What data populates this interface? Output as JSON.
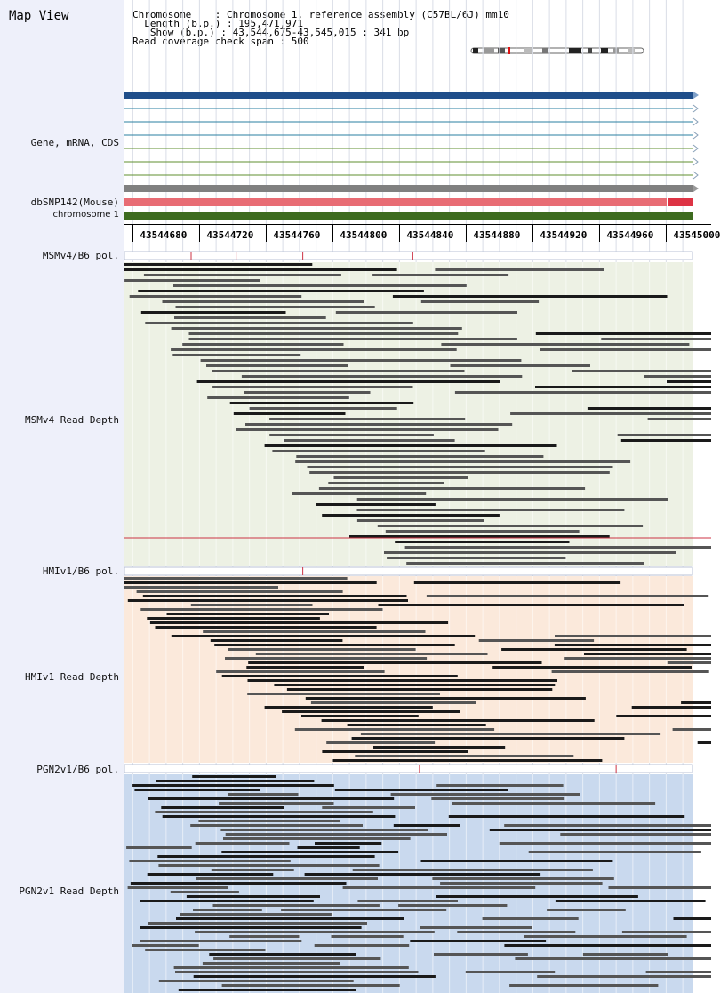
{
  "header": {
    "title": "Map View",
    "chromosome_line": "Chromosome    : Chromosome 1, reference assembly (C57BL/6J) mm10",
    "length_line": "  Length (b.p.) : 195,471,971",
    "show_line": "   Show (b.p.) : 43,544,675-43,545,015 : 341 bp",
    "span_line": "Read coverage check span : 500"
  },
  "labels": {
    "gene": "Gene, mRNA, CDS",
    "dbsnp": "dbSNP142(Mouse)",
    "chromosome": "chromosome 1",
    "msm_pol": "MSMv4/B6 pol.",
    "msm_depth": "MSMv4 Read Depth",
    "hmi_pol": "HMIv1/B6 pol.",
    "hmi_depth": "HMIv1 Read Depth",
    "pgn_pol": "PGN2v1/B6 pol.",
    "pgn_depth": "PGN2v1 Read Depth"
  },
  "axis": {
    "ticks": [
      "43544680",
      "43544720",
      "43544760",
      "43544800",
      "43544840",
      "43544880",
      "43544920",
      "43544960",
      "43545000"
    ]
  },
  "colors": {
    "label_bg": "#eef0fa",
    "gene_main": "#1f4e8a",
    "snp_bar": "#e86c74",
    "chrom_bar": "#3d6b1f",
    "msm_bg": "#edf1e4",
    "hmi_bg": "#fbe9db",
    "pgn_bg": "#c9d9ee",
    "poly_mark": "#cc3344"
  },
  "polymorphisms": {
    "msm": [
      43544715,
      43544742,
      43544782,
      43544848
    ],
    "hmi": [
      43544782
    ],
    "pgn": [
      43544852,
      43544970
    ]
  }
}
